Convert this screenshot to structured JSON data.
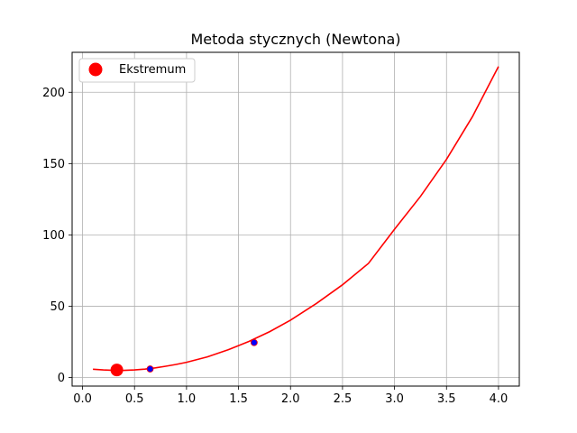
{
  "chart_data": {
    "type": "line",
    "title": "Metoda stycznych (Newtona)",
    "xlabel": "",
    "ylabel": "",
    "xlim": [
      -0.1,
      4.2
    ],
    "ylim": [
      -6,
      228
    ],
    "grid": true,
    "legend_position": "top-left",
    "x_ticks": [
      "0.0",
      "0.5",
      "1.0",
      "1.5",
      "2.0",
      "2.5",
      "3.0",
      "3.5",
      "4.0"
    ],
    "y_ticks": [
      "0",
      "50",
      "100",
      "150",
      "200"
    ],
    "curve": {
      "color": "#ff0000",
      "x": [
        0.1,
        0.2,
        0.3,
        0.4,
        0.5,
        0.6,
        0.7,
        0.8,
        0.9,
        1.0,
        1.2,
        1.4,
        1.6,
        1.8,
        2.0,
        2.25,
        2.5,
        2.75,
        3.0,
        3.25,
        3.5,
        3.75,
        4.0
      ],
      "y": [
        5.8,
        5.3,
        5.0,
        5.0,
        5.3,
        5.9,
        6.8,
        7.9,
        9.2,
        10.7,
        14.5,
        19.4,
        25.3,
        32.2,
        40.2,
        52.0,
        65.0,
        80.0,
        104.0,
        127.0,
        153.0,
        183.0,
        218.0
      ]
    },
    "points": [
      {
        "x": 0.65,
        "y": 6.0,
        "color": "#0000ff",
        "edge": "#ff0000"
      },
      {
        "x": 1.65,
        "y": 24.5,
        "color": "#0000ff",
        "edge": "#ff0000"
      }
    ],
    "extremum": {
      "name": "Ekstremum",
      "x": 0.33,
      "y": 5.3,
      "color": "#ff0000"
    }
  }
}
